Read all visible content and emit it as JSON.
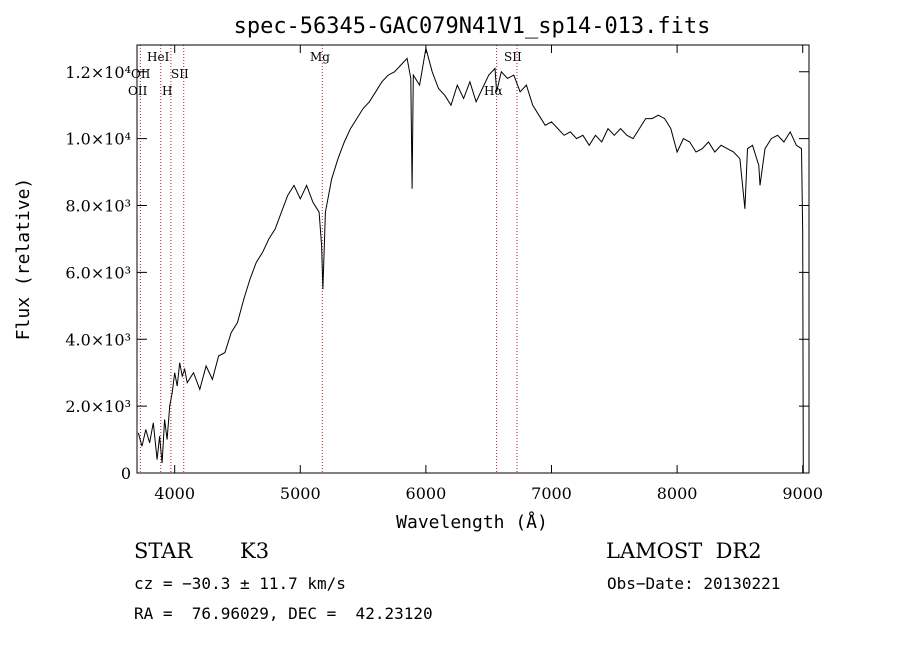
{
  "chart_data": {
    "type": "line",
    "title": "spec-56345-GAC079N41V1_sp14-013.fits",
    "xlabel": "Wavelength (Å)",
    "ylabel": "Flux (relative)",
    "xlim": [
      3700,
      9050
    ],
    "ylim": [
      0,
      12800
    ],
    "x_ticks": [
      4000,
      5000,
      6000,
      7000,
      8000,
      9000
    ],
    "y_ticks": [
      {
        "value": 0,
        "label": "0"
      },
      {
        "value": 2000,
        "label": "2.0×10³"
      },
      {
        "value": 4000,
        "label": "4.0×10³"
      },
      {
        "value": 6000,
        "label": "6.0×10³"
      },
      {
        "value": 8000,
        "label": "8.0×10³"
      },
      {
        "value": 10000,
        "label": "1.0×10⁴"
      },
      {
        "value": 12000,
        "label": "1.2×10⁴"
      }
    ],
    "grid": false,
    "line_color": "#000000",
    "marker_color": "#b22222",
    "series": [
      {
        "x": [
          3710,
          3740,
          3770,
          3800,
          3830,
          3860,
          3880,
          3900,
          3920,
          3940,
          3960,
          3980,
          4000,
          4020,
          4040,
          4060,
          4080,
          4100,
          4150,
          4200,
          4250,
          4300,
          4350,
          4400,
          4450,
          4500,
          4550,
          4600,
          4650,
          4700,
          4750,
          4800,
          4850,
          4900,
          4950,
          5000,
          5050,
          5100,
          5150,
          5170,
          5180,
          5200,
          5250,
          5300,
          5350,
          5400,
          5450,
          5500,
          5550,
          5600,
          5650,
          5700,
          5750,
          5800,
          5850,
          5880,
          5890,
          5900,
          5950,
          6000,
          6050,
          6100,
          6150,
          6200,
          6250,
          6300,
          6350,
          6400,
          6450,
          6500,
          6550,
          6563,
          6600,
          6650,
          6700,
          6750,
          6800,
          6850,
          6900,
          6950,
          7000,
          7050,
          7100,
          7150,
          7200,
          7250,
          7300,
          7350,
          7400,
          7450,
          7500,
          7550,
          7600,
          7650,
          7700,
          7750,
          7800,
          7850,
          7900,
          7950,
          8000,
          8050,
          8100,
          8150,
          8200,
          8250,
          8300,
          8350,
          8400,
          8450,
          8500,
          8540,
          8560,
          8600,
          8650,
          8660,
          8700,
          8750,
          8800,
          8850,
          8900,
          8950,
          8990,
          9000,
          9005
        ],
        "y": [
          1200,
          800,
          1300,
          900,
          1500,
          400,
          1100,
          300,
          1600,
          1000,
          2000,
          2400,
          3000,
          2600,
          3300,
          2900,
          3100,
          2700,
          3000,
          2500,
          3200,
          2800,
          3500,
          3600,
          4200,
          4500,
          5200,
          5800,
          6300,
          6600,
          7000,
          7300,
          7800,
          8300,
          8600,
          8200,
          8600,
          8100,
          7800,
          6800,
          5500,
          7800,
          8800,
          9400,
          9900,
          10300,
          10600,
          10900,
          11100,
          11400,
          11700,
          11900,
          12000,
          12200,
          12400,
          11800,
          8500,
          11900,
          11600,
          12700,
          12000,
          11500,
          11300,
          11000,
          11600,
          11200,
          11700,
          11100,
          11500,
          11900,
          12100,
          11400,
          12000,
          11800,
          11900,
          11400,
          11600,
          11000,
          10700,
          10400,
          10500,
          10300,
          10100,
          10200,
          10000,
          10100,
          9800,
          10100,
          9900,
          10300,
          10100,
          10300,
          10100,
          10000,
          10300,
          10600,
          10600,
          10700,
          10600,
          10300,
          9600,
          10000,
          9900,
          9600,
          9700,
          9900,
          9600,
          9800,
          9700,
          9600,
          9400,
          7900,
          9700,
          9800,
          9200,
          8600,
          9700,
          10000,
          10100,
          9900,
          10200,
          9800,
          9700,
          7200,
          0
        ]
      }
    ],
    "lines": [
      {
        "label": "OII",
        "x": 3727
      },
      {
        "label": "HeI",
        "x": 3889
      },
      {
        "label": "H",
        "x": 3970
      },
      {
        "label": "SII",
        "x": 4072
      },
      {
        "label": "Mg",
        "x": 5175
      },
      {
        "label": "Hα",
        "x": 6563
      },
      {
        "label": "SII",
        "x": 6725
      }
    ],
    "line_labels": {
      "oii_upper": "OII",
      "oii_lower": "OII",
      "hei": "HeI",
      "h": "H",
      "sii_blue": "SII",
      "mg": "Mg",
      "halpha": "Hα",
      "sii_red": "SII"
    }
  },
  "info": {
    "object_class": "STAR",
    "subclass": "K3",
    "survey": "LAMOST  DR2",
    "cz": "cz = −30.3 ± 11.7 km/s",
    "obs_date": "Obs−Date: 20130221",
    "coords": "RA =  76.96029, DEC =  42.23120"
  }
}
